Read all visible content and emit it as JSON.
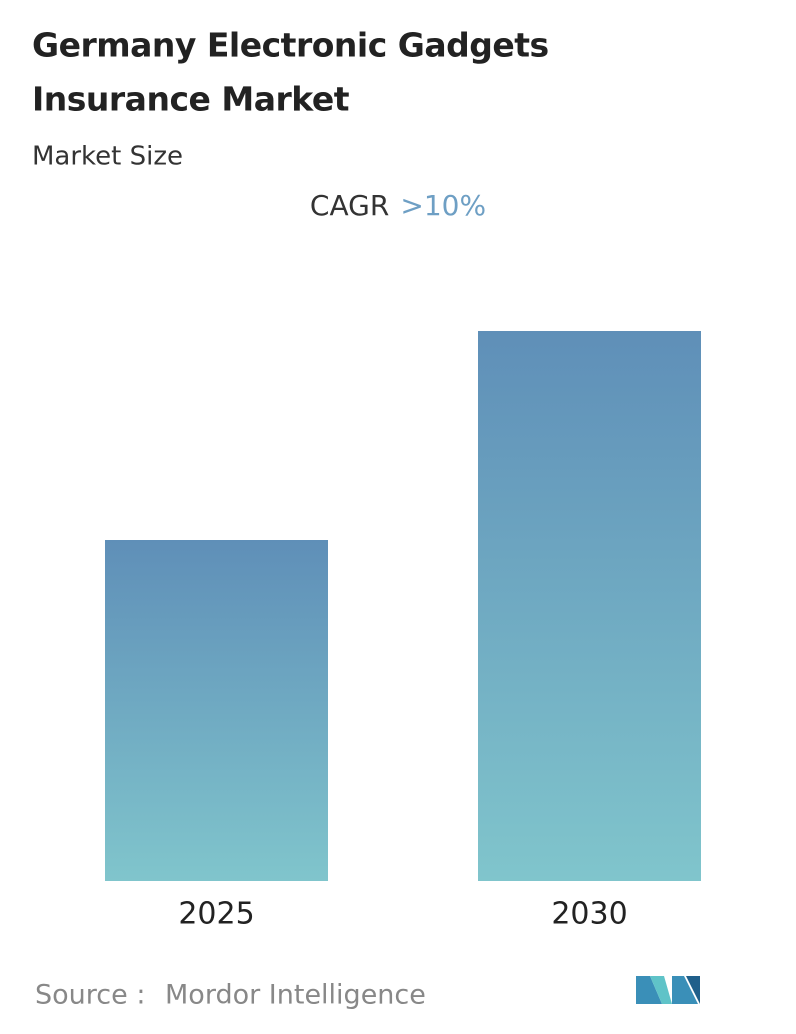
{
  "chart_data": {
    "type": "bar",
    "title": [
      "Germany Electronic Gadgets",
      "Insurance Market"
    ],
    "subtitle": "Market Size",
    "cagr_label": "CAGR",
    "cagr_value": ">10%",
    "categories": [
      "2025",
      "2030"
    ],
    "values": [
      62,
      100
    ],
    "gradient": [
      "#5f8fb8",
      "#80c5cc"
    ],
    "source_label": "Source :",
    "source": "Mordor Intelligence"
  }
}
